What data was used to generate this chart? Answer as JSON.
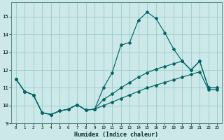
{
  "xlabel": "Humidex (Indice chaleur)",
  "background_color": "#cce8e8",
  "grid_color": "#99cccc",
  "line_color": "#006666",
  "xlim": [
    -0.5,
    23.5
  ],
  "ylim": [
    9.0,
    15.8
  ],
  "xticks": [
    0,
    1,
    2,
    3,
    4,
    5,
    6,
    7,
    8,
    9,
    10,
    11,
    12,
    13,
    14,
    15,
    16,
    17,
    18,
    19,
    20,
    21,
    22,
    23
  ],
  "yticks": [
    9,
    10,
    11,
    12,
    13,
    14,
    15
  ],
  "line1_x": [
    0,
    1,
    2,
    3,
    4,
    5,
    6,
    7,
    8,
    9,
    10,
    11,
    12,
    13,
    14,
    15,
    16,
    17,
    18,
    19,
    20,
    21,
    22,
    23
  ],
  "line1_y": [
    11.5,
    10.8,
    10.6,
    9.6,
    9.5,
    9.7,
    9.8,
    10.05,
    9.75,
    9.8,
    11.0,
    11.85,
    13.4,
    13.55,
    14.8,
    15.25,
    14.9,
    14.1,
    13.2,
    12.5,
    12.0,
    12.5,
    11.0,
    11.0
  ],
  "line2_x": [
    0,
    1,
    2,
    3,
    4,
    5,
    6,
    7,
    8,
    9,
    10,
    11,
    12,
    13,
    14,
    15,
    16,
    17,
    18,
    19,
    20,
    21,
    22,
    23
  ],
  "line2_y": [
    11.5,
    10.8,
    10.6,
    9.6,
    9.5,
    9.7,
    9.8,
    10.05,
    9.75,
    9.8,
    10.35,
    10.65,
    11.0,
    11.3,
    11.6,
    11.85,
    12.05,
    12.2,
    12.35,
    12.5,
    12.0,
    12.5,
    11.0,
    11.0
  ],
  "line3_x": [
    0,
    1,
    2,
    3,
    4,
    5,
    6,
    7,
    8,
    9,
    10,
    11,
    12,
    13,
    14,
    15,
    16,
    17,
    18,
    19,
    20,
    21,
    22,
    23
  ],
  "line3_y": [
    11.5,
    10.8,
    10.6,
    9.6,
    9.5,
    9.7,
    9.8,
    10.05,
    9.75,
    9.8,
    10.0,
    10.2,
    10.4,
    10.6,
    10.8,
    11.0,
    11.15,
    11.3,
    11.45,
    11.6,
    11.75,
    11.9,
    10.9,
    10.9
  ]
}
